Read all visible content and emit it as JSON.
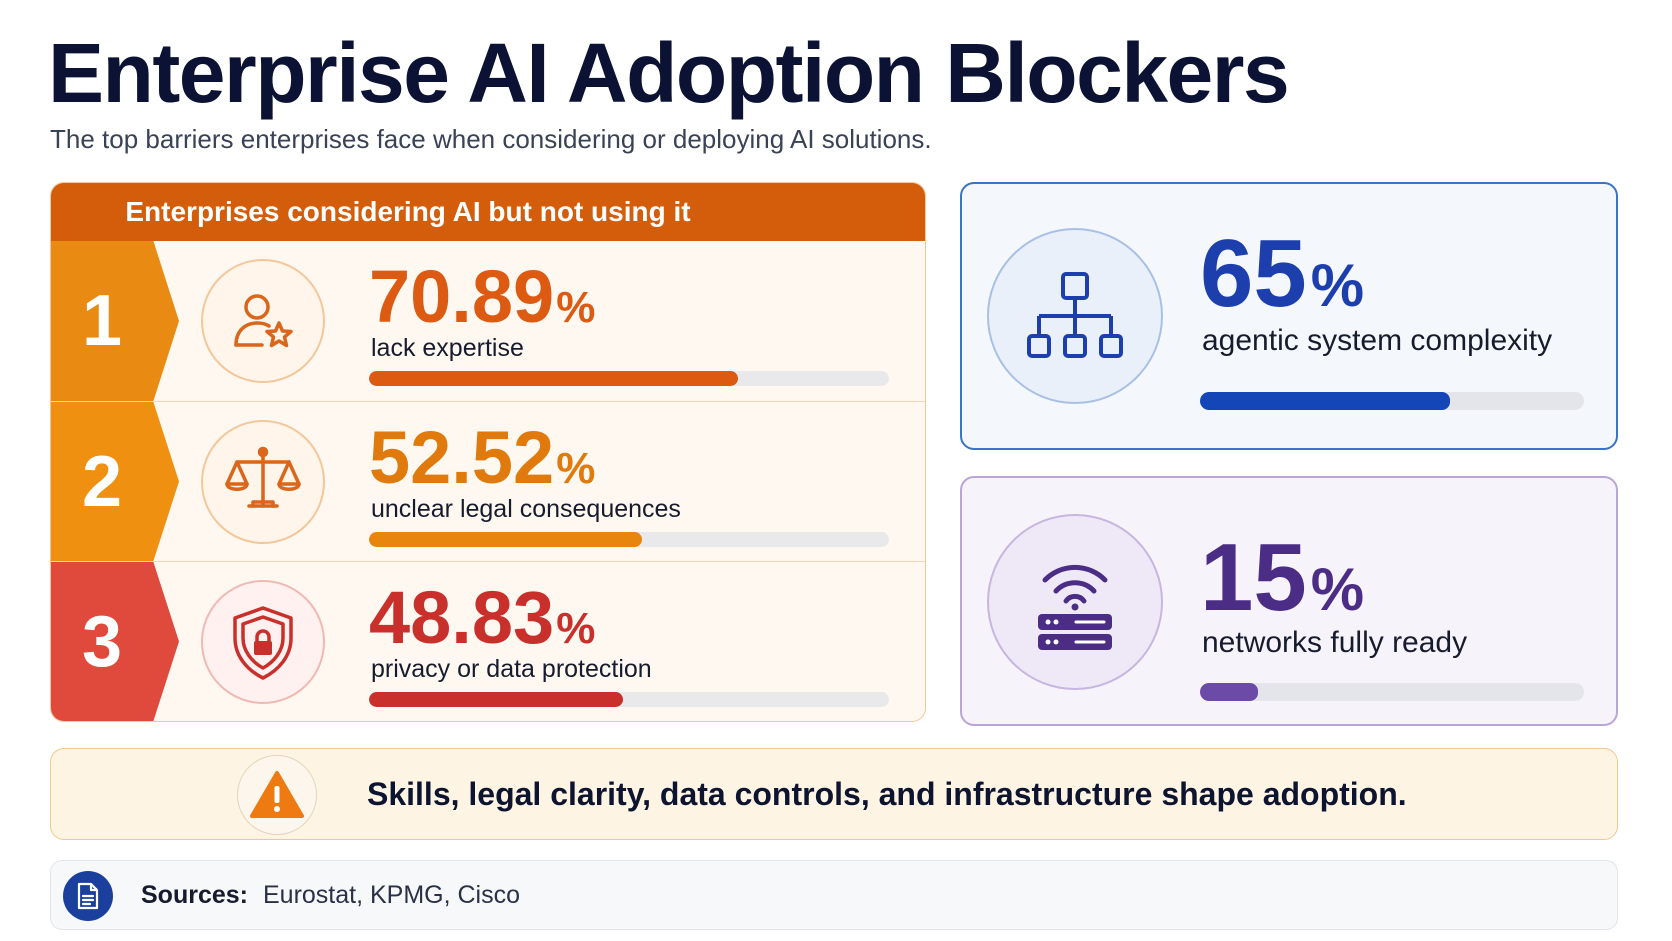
{
  "title": "Enterprise AI Adoption Blockers",
  "subtitle": "The top barriers enterprises face when considering or deploying AI solutions.",
  "left_panel": {
    "header": "Enterprises considering AI but not using it",
    "rows": [
      {
        "rank": "1",
        "value": "70.89",
        "unit": "%",
        "label": "lack expertise",
        "fraction": 0.7089,
        "color": "#dd5a12",
        "badge_color": "#e98a12",
        "icon": "user-star-icon"
      },
      {
        "rank": "2",
        "value": "52.52",
        "unit": "%",
        "label": "unclear legal consequences",
        "fraction": 0.5252,
        "color": "#e8850c",
        "badge_color": "#f09010",
        "icon": "scales-icon"
      },
      {
        "rank": "3",
        "value": "48.83",
        "unit": "%",
        "label": "privacy or data protection",
        "fraction": 0.4883,
        "color": "#c9302c",
        "badge_color": "#e04a3c",
        "icon": "shield-lock-icon"
      }
    ]
  },
  "cards": [
    {
      "value": "65",
      "unit": "%",
      "label": "agentic system complexity",
      "fraction": 0.65,
      "color": "#1d3fae",
      "bar_color": "#1546b8",
      "icon": "hierarchy-icon"
    },
    {
      "value": "15",
      "unit": "%",
      "label": "networks fully ready",
      "fraction": 0.15,
      "color": "#4b2d86",
      "bar_color": "#6b4aa8",
      "icon": "wifi-router-icon"
    }
  ],
  "callout": {
    "text": "Skills, legal clarity, data controls, and infrastructure shape adoption.",
    "icon": "warning-icon"
  },
  "sources": {
    "label": "Sources:",
    "value": "Eurostat, KPMG, Cisco",
    "icon": "document-icon"
  }
}
